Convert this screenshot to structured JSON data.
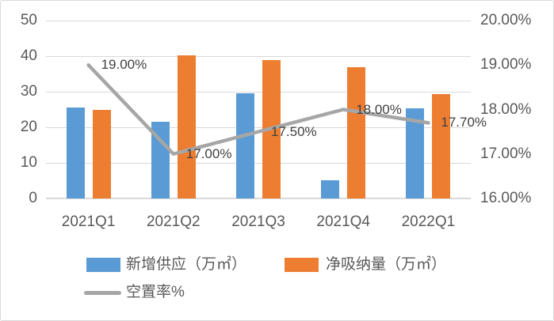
{
  "chart_data": {
    "type": "combo",
    "categories": [
      "2021Q1",
      "2021Q2",
      "2021Q3",
      "2021Q4",
      "2022Q1"
    ],
    "series": [
      {
        "name": "新增供应（万㎡）",
        "type": "bar",
        "axis": "left",
        "color": "#5B9BD5",
        "values": [
          25.6,
          21.6,
          29.5,
          5.1,
          25.4
        ]
      },
      {
        "name": "净吸纳量（万㎡）",
        "type": "bar",
        "axis": "left",
        "color": "#ED7D31",
        "values": [
          24.9,
          40.3,
          38.9,
          36.9,
          29.3
        ]
      },
      {
        "name": "空置率%",
        "type": "line",
        "axis": "right",
        "color": "#A6A6A6",
        "values": [
          19.0,
          17.0,
          17.5,
          18.0,
          17.7
        ],
        "point_labels": [
          "19.00%",
          "17.00%",
          "17.50%",
          "18.00%",
          "17.70%"
        ]
      }
    ],
    "left_axis": {
      "min": 0,
      "max": 50,
      "step": 10,
      "tick_labels": [
        "0",
        "10",
        "20",
        "30",
        "40",
        "50"
      ]
    },
    "right_axis": {
      "min": 16,
      "max": 20,
      "step": 1,
      "tick_labels": [
        "16.00%",
        "17.00%",
        "18.00%",
        "19.00%",
        "20.00%"
      ]
    },
    "grid": true,
    "legend_position": "bottom",
    "legend": [
      "新增供应（万㎡）",
      "净吸纳量（万㎡）",
      "空置率%"
    ]
  },
  "style": {
    "bar_blue": "#5B9BD5",
    "bar_orange": "#ED7D31",
    "line_gray": "#A6A6A6",
    "gridline_color": "#D9D9D9",
    "axis_text_color": "#595959",
    "data_label_color": "#404040",
    "background": "#FFFFFF",
    "border_color": "#D9D9D9"
  }
}
